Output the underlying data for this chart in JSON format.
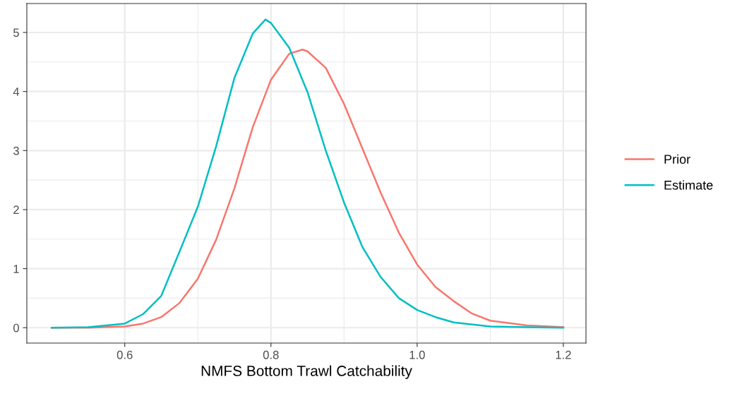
{
  "chart_data": {
    "type": "line",
    "xlabel": "NMFS Bottom Trawl Catchability",
    "xlim": [
      0.466,
      1.231
    ],
    "ylim": [
      -0.26,
      5.49
    ],
    "xticks": [
      0.6,
      0.8,
      {
        "value": 1.0,
        "label": "1.0"
      },
      1.2
    ],
    "yticks": [
      0,
      1,
      2,
      3,
      4,
      5
    ],
    "grid": true,
    "legend": "right",
    "marker": "none",
    "line_style": "solid",
    "series": [
      {
        "name": "Prior",
        "color": "#f8766d",
        "x": [
          0.5,
          0.55,
          0.6,
          0.625,
          0.65,
          0.675,
          0.7,
          0.725,
          0.75,
          0.775,
          0.8,
          0.825,
          0.843,
          0.85,
          0.875,
          0.9,
          0.925,
          0.95,
          0.975,
          1.0,
          1.025,
          1.05,
          1.075,
          1.1,
          1.15,
          1.2
        ],
        "values": [
          0,
          0,
          0.02,
          0.07,
          0.18,
          0.42,
          0.83,
          1.49,
          2.36,
          3.39,
          4.2,
          4.64,
          4.71,
          4.68,
          4.4,
          3.79,
          3.04,
          2.29,
          1.61,
          1.07,
          0.69,
          0.45,
          0.24,
          0.12,
          0.04,
          0.01
        ]
      },
      {
        "name": "Estimate",
        "color": "#00bfc4",
        "x": [
          0.5,
          0.55,
          0.6,
          0.625,
          0.65,
          0.675,
          0.7,
          0.725,
          0.75,
          0.775,
          0.7925,
          0.8,
          0.825,
          0.85,
          0.875,
          0.9,
          0.925,
          0.95,
          0.975,
          1.0,
          1.025,
          1.05,
          1.1,
          1.15,
          1.2
        ],
        "values": [
          0,
          0.01,
          0.07,
          0.23,
          0.54,
          1.29,
          2.05,
          3.07,
          4.23,
          4.98,
          5.22,
          5.16,
          4.74,
          3.99,
          3.0,
          2.12,
          1.37,
          0.86,
          0.5,
          0.3,
          0.18,
          0.09,
          0.02,
          0.01,
          0
        ]
      }
    ]
  }
}
